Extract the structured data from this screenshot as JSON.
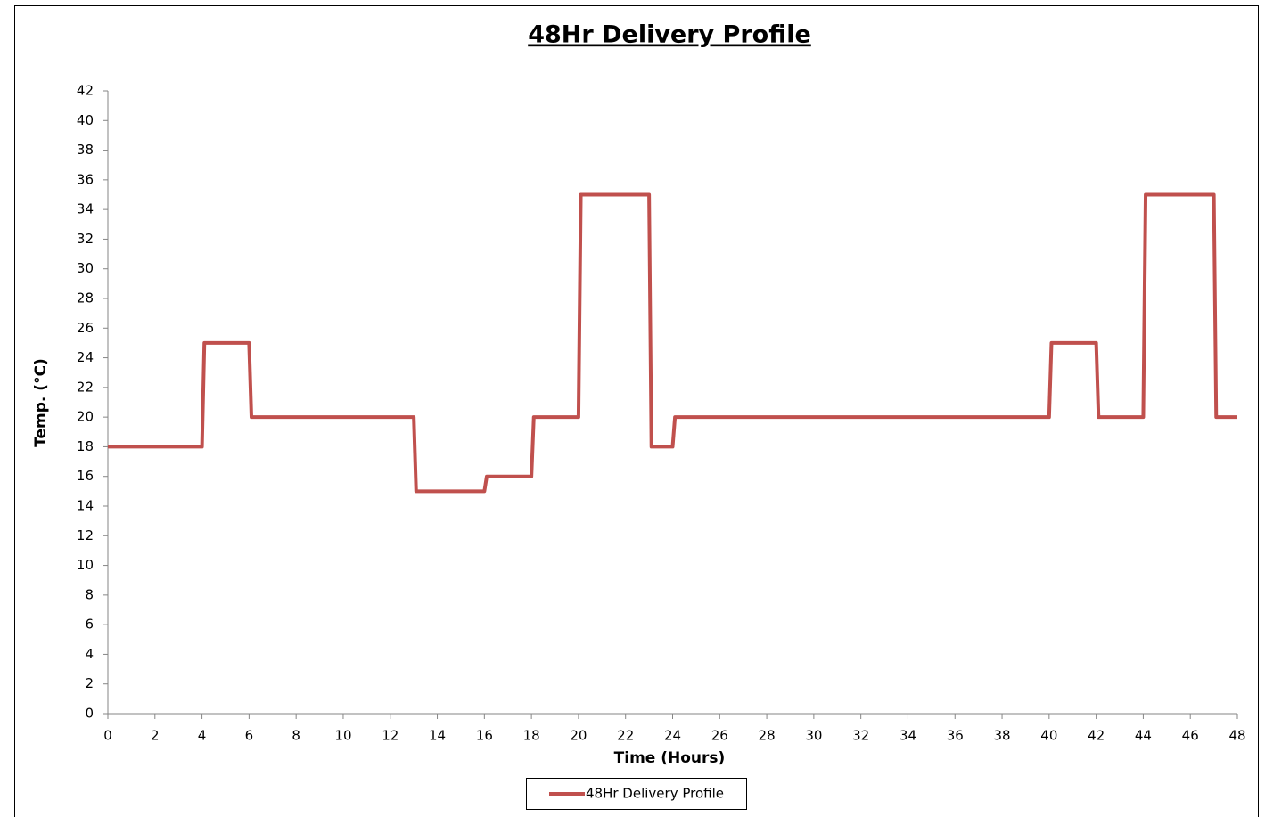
{
  "chart_data": {
    "type": "line",
    "title": "48Hr Delivery Profile",
    "x_label": "Time (Hours)",
    "y_label": "Temp. (°C)",
    "x": [
      0,
      4,
      4.1,
      6,
      6.1,
      13,
      13.1,
      16,
      16.1,
      18,
      18.1,
      20,
      20.1,
      23,
      23.1,
      24,
      24.1,
      40,
      40.1,
      42,
      42.1,
      44,
      44.1,
      47,
      47.1,
      48
    ],
    "series": [
      {
        "name": "48Hr Delivery Profile",
        "color": "#c0504d",
        "values": [
          18,
          18,
          25,
          25,
          20,
          20,
          15,
          15,
          16,
          16,
          20,
          20,
          35,
          35,
          18,
          18,
          20,
          20,
          25,
          25,
          20,
          20,
          35,
          35,
          20,
          20
        ]
      }
    ],
    "xlim": [
      0,
      48
    ],
    "xticks": [
      0,
      2,
      4,
      6,
      8,
      10,
      12,
      14,
      16,
      18,
      20,
      22,
      24,
      26,
      28,
      30,
      32,
      34,
      36,
      38,
      40,
      42,
      44,
      46,
      48
    ],
    "ylim": [
      0,
      42
    ],
    "yticks": [
      0,
      2,
      4,
      6,
      8,
      10,
      12,
      14,
      16,
      18,
      20,
      22,
      24,
      26,
      28,
      30,
      32,
      34,
      36,
      38,
      40,
      42
    ],
    "grid": false,
    "legend": "bottom"
  }
}
